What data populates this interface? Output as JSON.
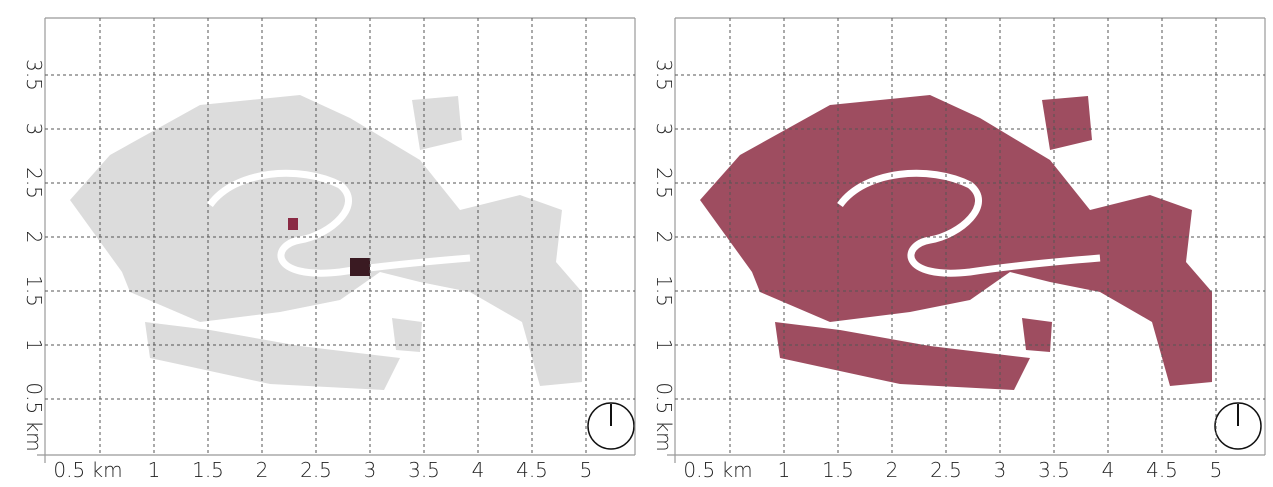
{
  "panels": [
    {
      "x_labels": [
        "0.5 km",
        "1",
        "1.5",
        "2",
        "2.5",
        "3",
        "3.5",
        "4",
        "4.5",
        "5"
      ],
      "y_labels": [
        "0.5 km",
        "1",
        "1.5",
        "2",
        "2.5",
        "3",
        "3.5"
      ]
    },
    {
      "x_labels": [
        "0.5 km",
        "1",
        "1.5",
        "2",
        "2.5",
        "3",
        "3.5",
        "4",
        "4.5",
        "5"
      ],
      "y_labels": [
        "0.5 km",
        "1",
        "1.5",
        "2",
        "2.5",
        "3",
        "3.5"
      ]
    }
  ]
}
